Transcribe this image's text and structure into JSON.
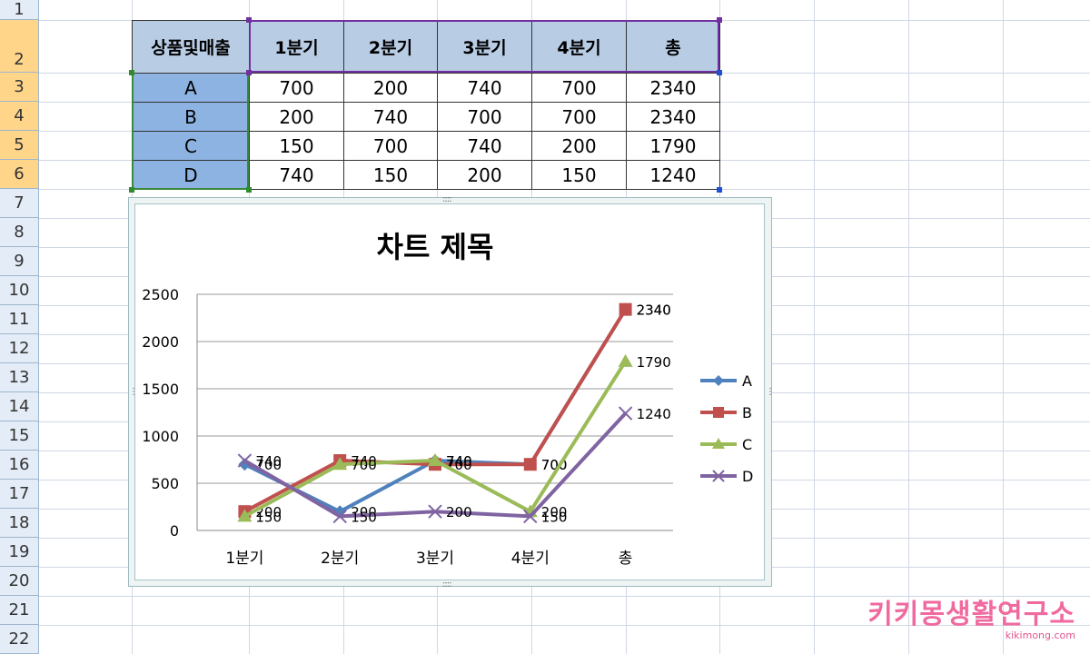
{
  "row_numbers": [
    "1",
    "2",
    "3",
    "4",
    "5",
    "6",
    "7",
    "8",
    "9",
    "10",
    "11",
    "12",
    "13",
    "14",
    "15",
    "16",
    "17",
    "18",
    "19",
    "20",
    "21",
    "22"
  ],
  "table": {
    "header": [
      "상품및매출",
      "1분기",
      "2분기",
      "3분기",
      "4분기",
      "총"
    ],
    "rows": [
      {
        "label": "A",
        "values": [
          "700",
          "200",
          "740",
          "700",
          "2340"
        ]
      },
      {
        "label": "B",
        "values": [
          "200",
          "740",
          "700",
          "700",
          "2340"
        ]
      },
      {
        "label": "C",
        "values": [
          "150",
          "700",
          "740",
          "200",
          "1790"
        ]
      },
      {
        "label": "D",
        "values": [
          "740",
          "150",
          "200",
          "150",
          "1240"
        ]
      }
    ]
  },
  "chart_data": {
    "type": "line",
    "title": "차트 제목",
    "categories": [
      "1분기",
      "2분기",
      "3분기",
      "4분기",
      "총"
    ],
    "ylim": [
      0,
      2500
    ],
    "yticks": [
      0,
      500,
      1000,
      1500,
      2000,
      2500
    ],
    "grid": true,
    "legend_position": "right",
    "series": [
      {
        "name": "A",
        "values": [
          700,
          200,
          740,
          700,
          2340
        ],
        "color": "#4f81bd",
        "marker": "diamond"
      },
      {
        "name": "B",
        "values": [
          200,
          740,
          700,
          700,
          2340
        ],
        "color": "#c0504d",
        "marker": "square"
      },
      {
        "name": "C",
        "values": [
          150,
          700,
          740,
          200,
          1790
        ],
        "color": "#9bbb59",
        "marker": "triangle"
      },
      {
        "name": "D",
        "values": [
          740,
          150,
          200,
          150,
          1240
        ],
        "color": "#8064a2",
        "marker": "x"
      }
    ]
  },
  "watermark": {
    "main": "키키몽생활연구소",
    "sub": "kikimong.com"
  }
}
